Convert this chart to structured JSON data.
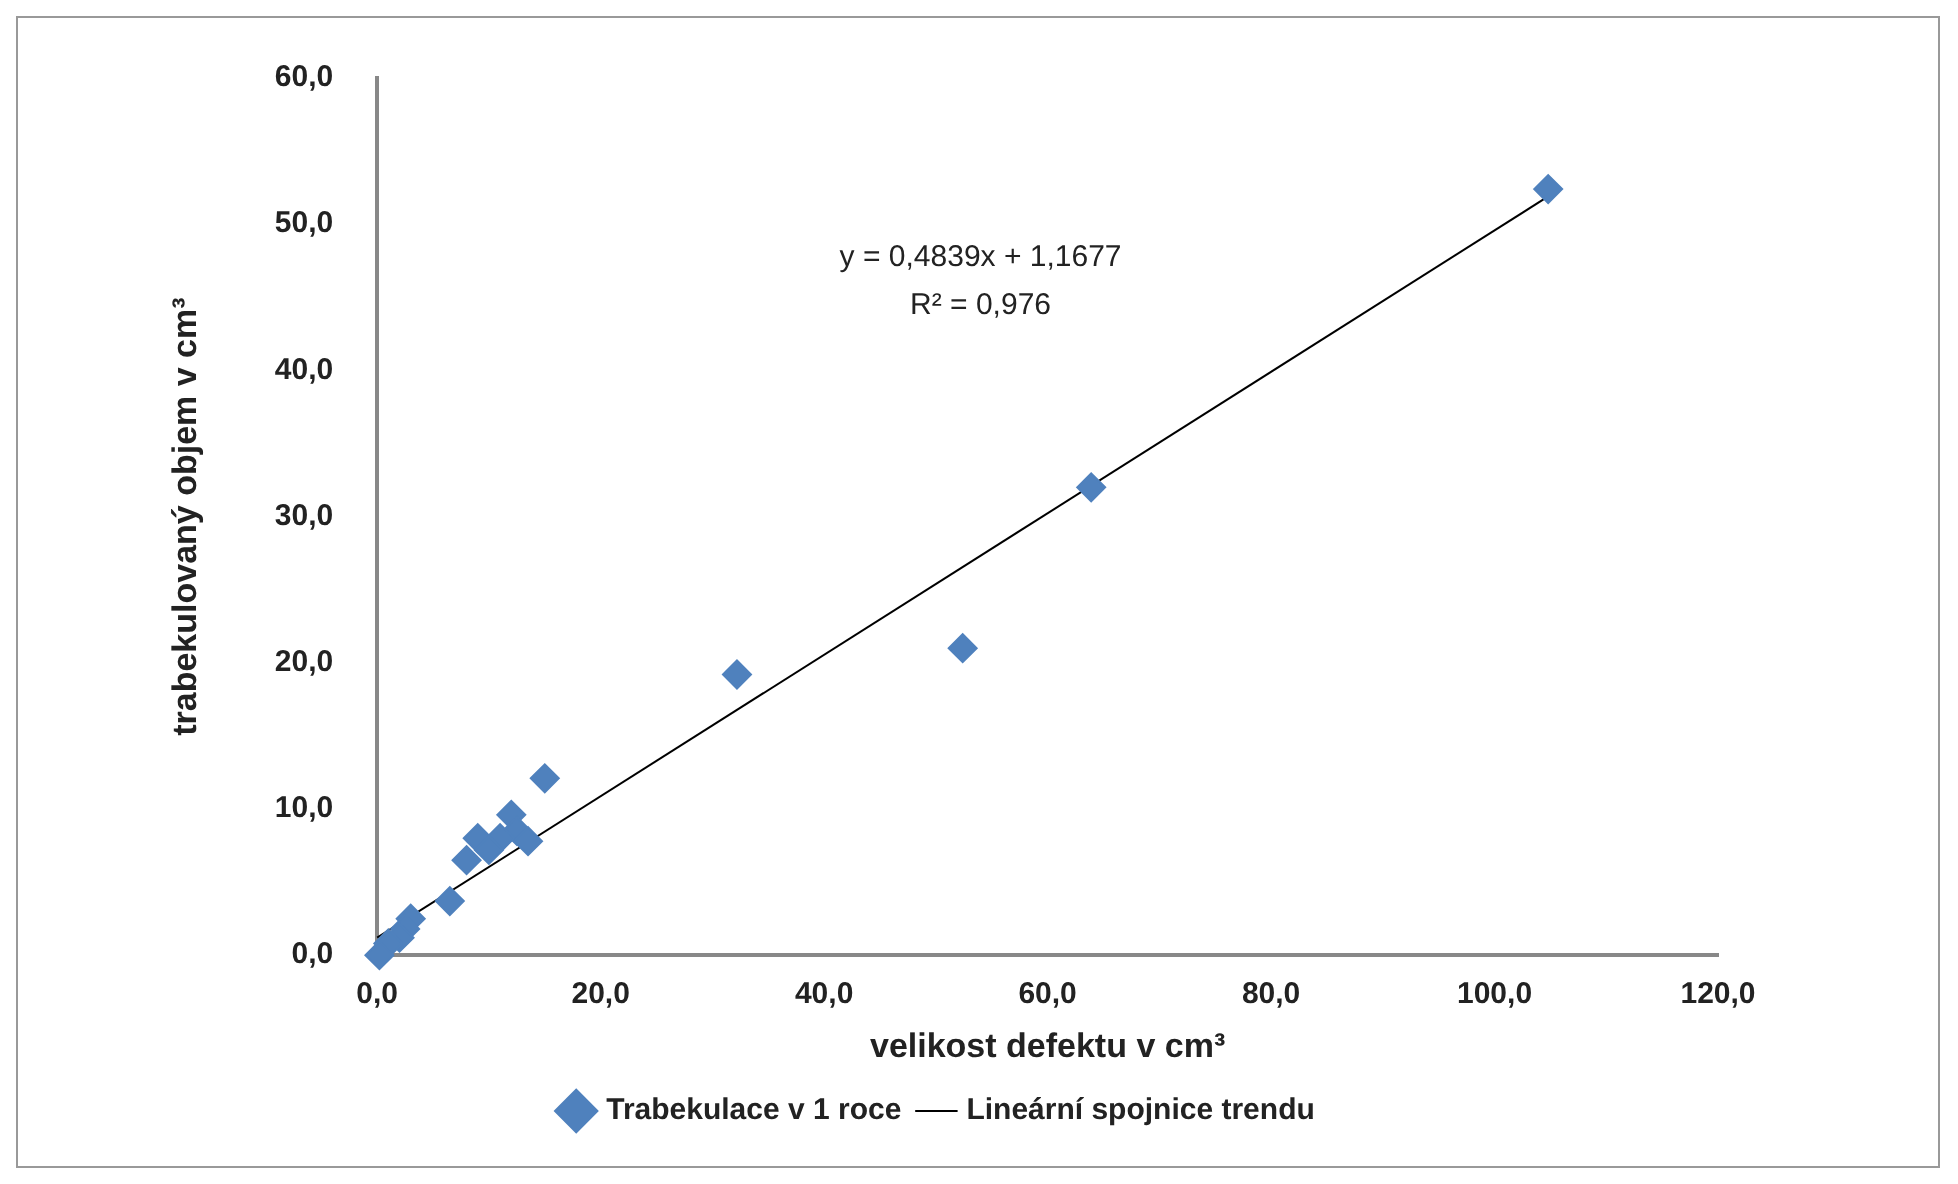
{
  "chart_data": {
    "type": "scatter",
    "xlabel": "velikost defektu v cm³",
    "ylabel": "trabekulovaný objem v cm³",
    "annotations": [
      "y = 0,4839x + 1,1677",
      "R² = 0,976"
    ],
    "marker": "diamond",
    "legend": "bottom",
    "grid": false,
    "xlim": [
      0,
      120
    ],
    "ylim": [
      0,
      60
    ],
    "xticks": [
      {
        "value": 0,
        "label": "0,0"
      },
      {
        "value": 20,
        "label": "20,0"
      },
      {
        "value": 40,
        "label": "40,0"
      },
      {
        "value": 60,
        "label": "60,0"
      },
      {
        "value": 80,
        "label": "80,0"
      },
      {
        "value": 100,
        "label": "100,0"
      },
      {
        "value": 120,
        "label": "120,0"
      }
    ],
    "yticks": [
      {
        "value": 0,
        "label": "0,0"
      },
      {
        "value": 10,
        "label": "10,0"
      },
      {
        "value": 20,
        "label": "20,0"
      },
      {
        "value": 30,
        "label": "30,0"
      },
      {
        "value": 40,
        "label": "40,0"
      },
      {
        "value": 50,
        "label": "50,0"
      },
      {
        "value": 60,
        "label": "60,0"
      }
    ],
    "series": [
      {
        "name": "Trabekulace v 1 roce",
        "color": "#4f81bd",
        "x": [
          104.8,
          63.9,
          52.4,
          32.2,
          15,
          12,
          12.5,
          13.5,
          11,
          9,
          10,
          8,
          6.5,
          3,
          2.5,
          2,
          1,
          0.2
        ],
        "values": [
          52.4,
          32,
          21,
          19.2,
          12.1,
          9.6,
          8.5,
          7.8,
          8,
          8,
          7.2,
          6.5,
          3.7,
          2.5,
          1.8,
          1.2,
          0.8,
          0
        ]
      },
      {
        "name": "Lineární spojnice trendu",
        "type": "line",
        "color": "#000000",
        "line_style": "solid",
        "marker": "none",
        "x": [
          0,
          104.8
        ],
        "values": [
          1.2,
          51.9
        ]
      }
    ]
  }
}
